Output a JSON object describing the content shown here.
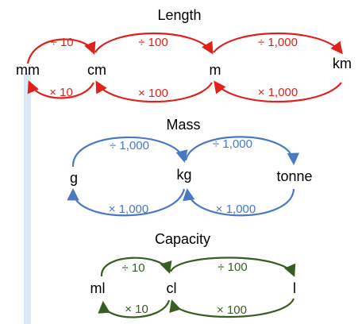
{
  "colors": {
    "length": "#e0201b",
    "mass": "#4a78c2",
    "capacity": "#375d23",
    "text": "#000000",
    "sidebar": "#dce8f7"
  },
  "length": {
    "title": "Length",
    "units": [
      "mm",
      "cm",
      "m",
      "km"
    ],
    "divide": [
      "÷ 10",
      "÷ 100",
      "÷ 1,000"
    ],
    "multiply": [
      "× 10",
      "× 100",
      "× 1,000"
    ]
  },
  "mass": {
    "title": "Mass",
    "units": [
      "g",
      "kg",
      "tonne"
    ],
    "divide": [
      "÷ 1,000",
      "÷ 1,000"
    ],
    "multiply": [
      "× 1,000",
      "× 1,000"
    ]
  },
  "capacity": {
    "title": "Capacity",
    "units": [
      "ml",
      "cl",
      "l"
    ],
    "divide": [
      "÷ 10",
      "÷ 100"
    ],
    "multiply": [
      "× 10",
      "× 100"
    ]
  }
}
